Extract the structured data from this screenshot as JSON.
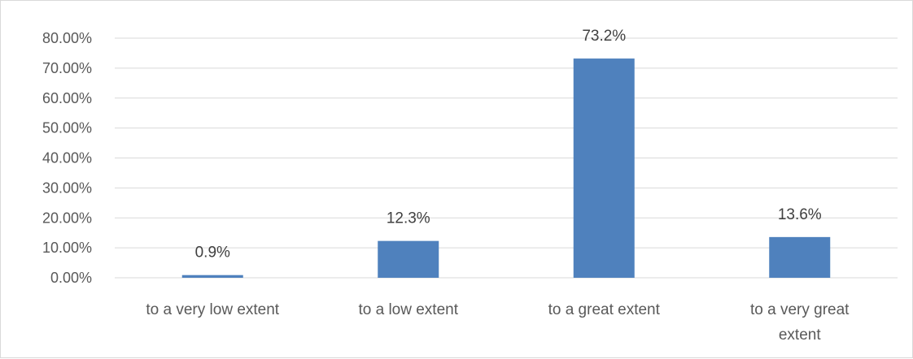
{
  "chart_data": {
    "type": "bar",
    "title": "",
    "xlabel": "",
    "ylabel": "",
    "categories": [
      "to  a very low extent",
      "to a low extent",
      "to a great extent",
      "to a very great extent"
    ],
    "values": [
      0.9,
      12.3,
      73.2,
      13.6
    ],
    "value_labels": [
      "0.9%",
      "12.3%",
      "73.2%",
      "13.6%"
    ],
    "ylim": [
      0,
      80
    ],
    "yticks": [
      0,
      10,
      20,
      30,
      40,
      50,
      60,
      70,
      80
    ],
    "ytick_labels": [
      "0.00%",
      "10.00%",
      "20.00%",
      "30.00%",
      "40.00%",
      "50.00%",
      "60.00%",
      "70.00%",
      "80.00%"
    ],
    "grid": true,
    "legend": "none",
    "bar_color": "#4f81bd",
    "grid_color": "#d9d9d9",
    "text_color": "#595959"
  }
}
